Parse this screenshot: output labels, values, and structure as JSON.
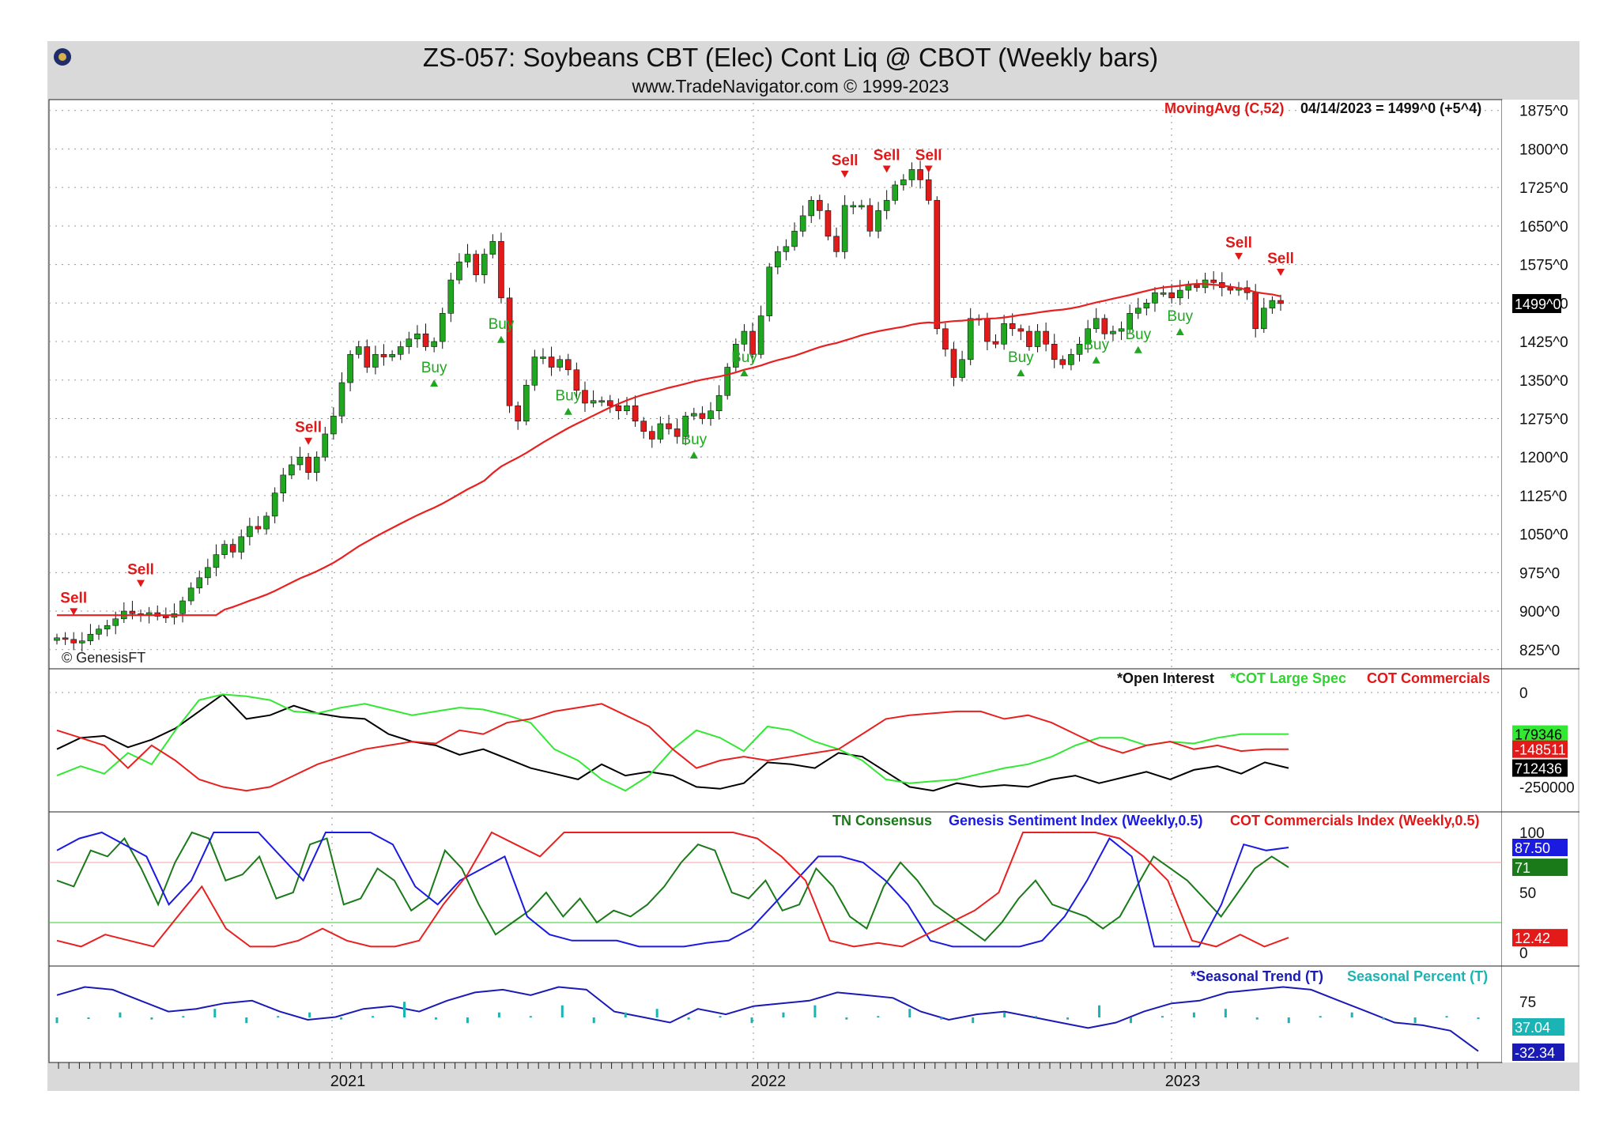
{
  "header": {
    "title": "ZS-057:  Soybeans CBT (Elec) Cont Liq @ CBOT  (Weekly bars)",
    "subtitle": "www.TradeNavigator.com © 1999-2023",
    "watermark": "© GenesisFT"
  },
  "colors": {
    "frame": "#d9d9d9",
    "bull": "#1fa81f",
    "bear": "#e21a1a",
    "ma": "#e82020",
    "oi": "#000000",
    "spec": "#33e833",
    "comm": "#e82020",
    "consensus": "#1a7a1a",
    "sentiment": "#1a1ae0",
    "seasonal_trend": "#1a1ab4",
    "seasonal_pct": "#1ab4b4"
  },
  "chart_data": [
    {
      "panel": "price",
      "type": "candlestick",
      "ylim": [
        800,
        1890
      ],
      "y_ticks": [
        "1875^0",
        "1800^0",
        "1725^0",
        "1650^0",
        "1575^0",
        "1500^0",
        "1425^0",
        "1350^0",
        "1275^0",
        "1200^0",
        "1125^0",
        "1050^0",
        "975^0",
        "900^0",
        "825^0"
      ],
      "x_labels": [
        "2021",
        "2022",
        "2023"
      ],
      "indicator_label": "MovingAvg (C,52)",
      "last_bar_label": "04/14/2023 = 1499^0 (+5^4)",
      "last_value_box": "1499^0",
      "closes": [
        848,
        845,
        838,
        842,
        855,
        865,
        872,
        885,
        900,
        895,
        893,
        897,
        890,
        888,
        895,
        920,
        945,
        965,
        985,
        1010,
        1030,
        1015,
        1045,
        1065,
        1060,
        1085,
        1130,
        1165,
        1185,
        1200,
        1170,
        1200,
        1245,
        1280,
        1345,
        1400,
        1415,
        1375,
        1400,
        1395,
        1400,
        1415,
        1430,
        1440,
        1415,
        1425,
        1480,
        1545,
        1580,
        1595,
        1555,
        1595,
        1620,
        1510,
        1300,
        1270,
        1340,
        1395,
        1395,
        1375,
        1390,
        1370,
        1330,
        1305,
        1310,
        1310,
        1300,
        1290,
        1300,
        1270,
        1250,
        1235,
        1265,
        1255,
        1240,
        1280,
        1285,
        1275,
        1290,
        1320,
        1375,
        1420,
        1445,
        1400,
        1475,
        1570,
        1600,
        1610,
        1640,
        1670,
        1700,
        1680,
        1630,
        1600,
        1690,
        1690,
        1690,
        1640,
        1680,
        1700,
        1730,
        1740,
        1760,
        1740,
        1700,
        1450,
        1410,
        1355,
        1390,
        1470,
        1470,
        1425,
        1420,
        1460,
        1450,
        1445,
        1415,
        1445,
        1420,
        1390,
        1380,
        1400,
        1420,
        1450,
        1470,
        1440,
        1445,
        1450,
        1480,
        1490,
        1500,
        1520,
        1520,
        1510,
        1525,
        1535,
        1530,
        1545,
        1540,
        1530,
        1525,
        1530,
        1520,
        1450,
        1490,
        1505,
        1499
      ],
      "signals": [
        {
          "label": "Sell",
          "i": 2,
          "dir": "sell"
        },
        {
          "label": "Sell",
          "i": 10,
          "dir": "sell"
        },
        {
          "label": "Sell",
          "i": 30,
          "dir": "sell"
        },
        {
          "label": "Buy",
          "i": 45,
          "dir": "buy"
        },
        {
          "label": "Buy",
          "i": 53,
          "dir": "buy"
        },
        {
          "label": "Buy",
          "i": 61,
          "dir": "buy"
        },
        {
          "label": "Buy",
          "i": 76,
          "dir": "buy"
        },
        {
          "label": "Buy",
          "i": 82,
          "dir": "buy"
        },
        {
          "label": "Sell",
          "i": 94,
          "dir": "sell"
        },
        {
          "label": "Sell",
          "i": 99,
          "dir": "sell"
        },
        {
          "label": "Sell",
          "i": 104,
          "dir": "sell"
        },
        {
          "label": "Buy",
          "i": 115,
          "dir": "buy"
        },
        {
          "label": "Buy",
          "i": 124,
          "dir": "buy"
        },
        {
          "label": "Buy",
          "i": 129,
          "dir": "buy"
        },
        {
          "label": "Buy",
          "i": 134,
          "dir": "buy"
        },
        {
          "label": "Sell",
          "i": 141,
          "dir": "sell"
        },
        {
          "label": "Sell",
          "i": 146,
          "dir": "sell"
        },
        {
          "label": "Sell",
          "i": 153,
          "dir": "sell"
        }
      ]
    },
    {
      "panel": "cot",
      "type": "line",
      "ylim": [
        -270000,
        0
      ],
      "y_ticks": [
        "0",
        "-250000"
      ],
      "series": [
        {
          "name": "*Open Interest",
          "values": [
            -150000,
            -120000,
            -115000,
            -145000,
            -125000,
            -95000,
            -50000,
            -5000,
            -70000,
            -60000,
            -35000,
            -55000,
            -65000,
            -70000,
            -110000,
            -130000,
            -140000,
            -165000,
            -150000,
            -175000,
            -200000,
            -215000,
            -230000,
            -190000,
            -220000,
            -210000,
            -220000,
            -250000,
            -255000,
            -240000,
            -185000,
            -190000,
            -200000,
            -160000,
            -170000,
            -210000,
            -250000,
            -260000,
            -240000,
            -250000,
            -245000,
            -250000,
            -230000,
            -220000,
            -240000,
            -225000,
            -210000,
            -230000,
            -205000,
            -195000,
            -215000,
            -185000,
            -200000
          ],
          "last_box": "712436"
        },
        {
          "name": "*COT Large Spec",
          "values": [
            -220000,
            -195000,
            -215000,
            -160000,
            -190000,
            -100000,
            -20000,
            -5000,
            -10000,
            -20000,
            -50000,
            -55000,
            -40000,
            -30000,
            -45000,
            -60000,
            -50000,
            -40000,
            -45000,
            -60000,
            -80000,
            -150000,
            -180000,
            -230000,
            -260000,
            -220000,
            -150000,
            -100000,
            -120000,
            -155000,
            -90000,
            -100000,
            -130000,
            -150000,
            -180000,
            -230000,
            -240000,
            -235000,
            -230000,
            -215000,
            -200000,
            -190000,
            -170000,
            -140000,
            -120000,
            -120000,
            -140000,
            -130000,
            -135000,
            -120000,
            -110000,
            -110000,
            -110000
          ],
          "last_box": "179346"
        },
        {
          "name": "COT Commercials",
          "values": [
            -100000,
            -120000,
            -140000,
            -200000,
            -140000,
            -180000,
            -230000,
            -250000,
            -260000,
            -250000,
            -220000,
            -190000,
            -170000,
            -150000,
            -140000,
            -130000,
            -135000,
            -100000,
            -110000,
            -80000,
            -70000,
            -50000,
            -40000,
            -30000,
            -60000,
            -90000,
            -150000,
            -200000,
            -180000,
            -170000,
            -180000,
            -170000,
            -160000,
            -150000,
            -110000,
            -70000,
            -60000,
            -55000,
            -50000,
            -50000,
            -70000,
            -60000,
            -80000,
            -110000,
            -140000,
            -160000,
            -140000,
            -130000,
            -150000,
            -140000,
            -155000,
            -150000,
            -150000
          ],
          "last_box": "-148511"
        }
      ]
    },
    {
      "panel": "sentiment",
      "type": "line",
      "ylim": [
        0,
        100
      ],
      "y_ticks": [
        "100",
        "50",
        "0"
      ],
      "series": [
        {
          "name": "TN Consensus",
          "values": [
            60,
            55,
            85,
            80,
            95,
            70,
            40,
            75,
            100,
            95,
            60,
            65,
            80,
            45,
            50,
            90,
            95,
            40,
            45,
            70,
            60,
            35,
            45,
            85,
            70,
            40,
            15,
            25,
            35,
            50,
            30,
            45,
            25,
            35,
            30,
            40,
            55,
            75,
            90,
            85,
            50,
            45,
            60,
            35,
            40,
            70,
            55,
            30,
            20,
            55,
            75,
            60,
            40,
            30,
            20,
            10,
            25,
            45,
            60,
            40,
            35,
            30,
            20,
            30,
            55,
            80,
            70,
            60,
            45,
            30,
            50,
            70,
            80,
            71
          ],
          "last_box": "71"
        },
        {
          "name": "Genesis Sentiment Index (Weekly,0.5)",
          "values": [
            85,
            95,
            100,
            90,
            80,
            40,
            60,
            100,
            100,
            100,
            80,
            60,
            100,
            100,
            100,
            90,
            55,
            40,
            60,
            70,
            80,
            30,
            15,
            10,
            10,
            10,
            5,
            5,
            5,
            8,
            10,
            20,
            40,
            60,
            80,
            80,
            75,
            60,
            40,
            10,
            5,
            5,
            5,
            5,
            10,
            30,
            60,
            95,
            80,
            5,
            5,
            5,
            40,
            90,
            85,
            87.5
          ],
          "last_box": "87.50"
        },
        {
          "name": "COT Commercials Index (Weekly,0.5)",
          "values": [
            10,
            5,
            15,
            10,
            5,
            30,
            55,
            20,
            5,
            5,
            10,
            20,
            10,
            5,
            5,
            10,
            40,
            65,
            100,
            90,
            80,
            100,
            100,
            100,
            100,
            100,
            100,
            100,
            100,
            95,
            80,
            60,
            10,
            5,
            8,
            5,
            15,
            25,
            35,
            50,
            100,
            100,
            100,
            100,
            95,
            80,
            60,
            10,
            5,
            15,
            5,
            12.42
          ],
          "last_box": "12.42"
        }
      ]
    },
    {
      "panel": "seasonal",
      "type": "line",
      "y_ticks": [
        "75"
      ],
      "series": [
        {
          "name": "*Seasonal Trend (T)",
          "values": [
            70,
            85,
            80,
            60,
            40,
            45,
            55,
            60,
            40,
            25,
            30,
            45,
            50,
            40,
            60,
            75,
            80,
            70,
            85,
            80,
            40,
            30,
            20,
            45,
            35,
            50,
            55,
            60,
            75,
            70,
            65,
            40,
            25,
            35,
            40,
            30,
            20,
            10,
            20,
            40,
            55,
            60,
            75,
            80,
            85,
            80,
            60,
            40,
            20,
            15,
            5,
            -32.34
          ],
          "last_box": "-32.34"
        },
        {
          "name": "Seasonal Percent (T)",
          "values": [
            30,
            38,
            45,
            35,
            40,
            50,
            30,
            40,
            45,
            35,
            40,
            60,
            35,
            30,
            45,
            40,
            55,
            30,
            45,
            50,
            35,
            40,
            30,
            45,
            55,
            35,
            40,
            50,
            35,
            30,
            45,
            40,
            35,
            55,
            30,
            40,
            45,
            50,
            35,
            30,
            40,
            45,
            35,
            30,
            40,
            37.04
          ],
          "last_box": "37.04"
        }
      ]
    }
  ]
}
